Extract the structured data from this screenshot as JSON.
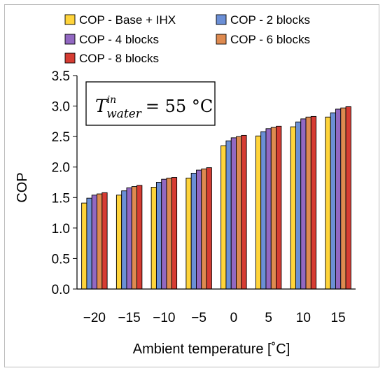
{
  "chart_data": {
    "type": "bar",
    "categories": [
      "−20",
      "−15",
      "−10",
      "−5",
      "0",
      "5",
      "10",
      "15"
    ],
    "series": [
      {
        "name": "COP - Base + IHX",
        "color": "#ffd43b",
        "values": [
          1.41,
          1.54,
          1.67,
          1.82,
          2.35,
          2.51,
          2.66,
          2.82
        ]
      },
      {
        "name": "COP - 2 blocks",
        "color": "#6b8fd6",
        "values": [
          1.49,
          1.61,
          1.75,
          1.9,
          2.43,
          2.58,
          2.74,
          2.89
        ]
      },
      {
        "name": "COP - 4 blocks",
        "color": "#9268c2",
        "values": [
          1.54,
          1.66,
          1.8,
          1.95,
          2.48,
          2.63,
          2.79,
          2.95
        ]
      },
      {
        "name": "COP - 6 blocks",
        "color": "#de8a50",
        "values": [
          1.56,
          1.68,
          1.82,
          1.97,
          2.5,
          2.65,
          2.82,
          2.97
        ]
      },
      {
        "name": "COP - 8 blocks",
        "color": "#d63c33",
        "values": [
          1.58,
          1.7,
          1.83,
          1.99,
          2.52,
          2.67,
          2.83,
          2.99
        ]
      }
    ],
    "xlabel": "Ambient temperature [˚C]",
    "ylabel": "COP",
    "ylim": [
      0,
      3.5
    ],
    "yticks": [
      "0.0",
      "0.5",
      "1.0",
      "1.5",
      "2.0",
      "2.5",
      "3.0",
      "3.5"
    ],
    "grid": false,
    "legend_position": "top",
    "annotation": {
      "base": "T",
      "superscript": "in",
      "subscript": "water",
      "rest": "= 55 °C"
    }
  }
}
